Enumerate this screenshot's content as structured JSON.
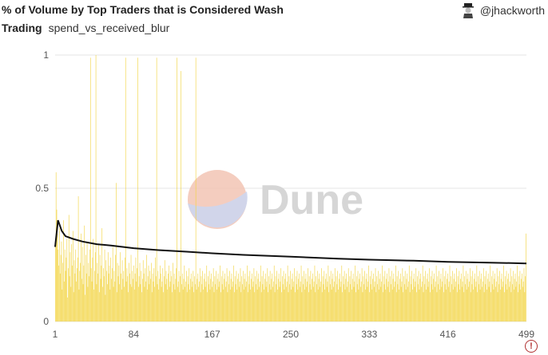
{
  "header": {
    "title_line1": "% of Volume by Top Traders that is Considered Wash",
    "title_line2": "Trading",
    "subtitle": "spend_vs_received_blur",
    "author": "@jhackworth"
  },
  "watermark": {
    "text": "Dune"
  },
  "colors": {
    "bar": "#f2d23c",
    "line": "#111111",
    "grid": "#e4e4e4",
    "watermark_red": "#f2c4b4",
    "watermark_blue": "#cdd6ee",
    "watermark_text": "#d6d6d6"
  },
  "chart_data": {
    "type": "bar",
    "title": "% of Volume by Top Traders that is Considered Wash Trading",
    "subtitle": "spend_vs_received_blur",
    "xlabel": "",
    "ylabel": "",
    "xlim": [
      1,
      499
    ],
    "ylim": [
      0,
      1
    ],
    "x_ticks": [
      "1",
      "84",
      "167",
      "250",
      "333",
      "416",
      "499"
    ],
    "y_ticks": [
      "0",
      "0.5",
      "1"
    ],
    "grid": true,
    "legend": "none",
    "series": [
      {
        "type": "bar",
        "x_range": [
          1,
          499
        ],
        "values": [
          0.29,
          0.56,
          0.42,
          0.33,
          0.27,
          0.21,
          0.35,
          0.18,
          0.25,
          0.3,
          0.12,
          0.22,
          0.38,
          0.15,
          0.27,
          0.19,
          0.24,
          0.31,
          0.09,
          0.2,
          0.4,
          0.17,
          0.26,
          0.13,
          0.29,
          0.21,
          0.34,
          0.11,
          0.23,
          0.18,
          0.27,
          0.15,
          0.2,
          0.24,
          0.47,
          0.12,
          0.19,
          0.22,
          0.33,
          0.16,
          0.28,
          0.14,
          0.21,
          0.36,
          0.1,
          0.25,
          0.18,
          0.3,
          0.13,
          0.22,
          0.17,
          0.27,
          0.99,
          0.2,
          0.15,
          0.24,
          0.31,
          0.12,
          0.19,
          0.26,
          1.0,
          0.14,
          0.22,
          0.18,
          0.29,
          0.11,
          0.25,
          0.16,
          0.21,
          0.35,
          0.13,
          0.2,
          0.17,
          0.27,
          0.1,
          0.23,
          0.19,
          0.14,
          0.26,
          0.18,
          0.21,
          0.12,
          0.24,
          0.16,
          0.2,
          0.28,
          0.13,
          0.19,
          0.15,
          0.25,
          0.52,
          0.11,
          0.22,
          0.17,
          0.21,
          0.14,
          0.26,
          0.18,
          0.12,
          0.23,
          0.16,
          0.19,
          0.13,
          0.24,
          0.99,
          0.15,
          0.2,
          0.17,
          0.11,
          0.22,
          0.18,
          0.14,
          0.25,
          0.13,
          0.19,
          0.16,
          0.21,
          0.12,
          0.18,
          0.24,
          0.15,
          0.2,
          0.99,
          0.13,
          0.17,
          0.22,
          0.14,
          0.19,
          0.11,
          0.16,
          0.23,
          0.18,
          0.13,
          0.2,
          0.15,
          0.25,
          0.12,
          0.17,
          0.21,
          0.14,
          0.19,
          0.16,
          0.22,
          0.11,
          0.18,
          0.15,
          0.2,
          0.13,
          0.24,
          0.17,
          0.99,
          0.14,
          0.19,
          0.12,
          0.16,
          0.21,
          0.18,
          0.13,
          0.15,
          0.2,
          0.11,
          0.17,
          0.23,
          0.14,
          0.19,
          0.16,
          0.12,
          0.18,
          0.21,
          0.13,
          0.15,
          0.19,
          0.17,
          0.11,
          0.22,
          0.14,
          0.18,
          0.12,
          0.16,
          0.2,
          0.99,
          0.13,
          0.15,
          0.19,
          0.11,
          0.17,
          0.94,
          0.14,
          0.18,
          0.12,
          0.16,
          0.21,
          0.13,
          0.15,
          0.19,
          0.11,
          0.17,
          0.14,
          0.2,
          0.12,
          0.16,
          0.18,
          0.13,
          0.15,
          0.19,
          0.11,
          0.17,
          0.14,
          0.99,
          0.12,
          0.16,
          0.18,
          0.13,
          0.15,
          0.2,
          0.11,
          0.17,
          0.14,
          0.19,
          0.12,
          0.16,
          0.18,
          0.13,
          0.15,
          0.21,
          0.11,
          0.17,
          0.14,
          0.19,
          0.12,
          0.16,
          0.18,
          0.13,
          0.15,
          0.2,
          0.11,
          0.17,
          0.14,
          0.19,
          0.12,
          0.16,
          0.18,
          0.13,
          0.15,
          0.21,
          0.11,
          0.17,
          0.14,
          0.19,
          0.12,
          0.16,
          0.18,
          0.13,
          0.15,
          0.2,
          0.11,
          0.17,
          0.14,
          0.19,
          0.12,
          0.16,
          0.18,
          0.13,
          0.15,
          0.21,
          0.11,
          0.17,
          0.14,
          0.19,
          0.12,
          0.16,
          0.18,
          0.13,
          0.15,
          0.2,
          0.11,
          0.17,
          0.14,
          0.19,
          0.12,
          0.16,
          0.18,
          0.13,
          0.15,
          0.21,
          0.11,
          0.17,
          0.14,
          0.19,
          0.12,
          0.16,
          0.18,
          0.13,
          0.15,
          0.2,
          0.11,
          0.17,
          0.14,
          0.19,
          0.12,
          0.16,
          0.18,
          0.13,
          0.15,
          0.21,
          0.11,
          0.17,
          0.14,
          0.19,
          0.12,
          0.16,
          0.18,
          0.13,
          0.15,
          0.2,
          0.11,
          0.17,
          0.14,
          0.19,
          0.12,
          0.16,
          0.18,
          0.13,
          0.15,
          0.21,
          0.11,
          0.17,
          0.14,
          0.19,
          0.12,
          0.16,
          0.18,
          0.13,
          0.15,
          0.2,
          0.11,
          0.17,
          0.14,
          0.19,
          0.12,
          0.16,
          0.18,
          0.13,
          0.15,
          0.21,
          0.11,
          0.17,
          0.14,
          0.19,
          0.12,
          0.16,
          0.18,
          0.13,
          0.15,
          0.2,
          0.11,
          0.17,
          0.14,
          0.19,
          0.12,
          0.16,
          0.18,
          0.13,
          0.15,
          0.21,
          0.11,
          0.17,
          0.14,
          0.19,
          0.12,
          0.16,
          0.18,
          0.13,
          0.15,
          0.2,
          0.11,
          0.17,
          0.14,
          0.19,
          0.12,
          0.16,
          0.18,
          0.13,
          0.15,
          0.21,
          0.11,
          0.17,
          0.14,
          0.19,
          0.12,
          0.16,
          0.18,
          0.13,
          0.15,
          0.2,
          0.11,
          0.17,
          0.14,
          0.19,
          0.12,
          0.16,
          0.18,
          0.13,
          0.15,
          0.21,
          0.11,
          0.17,
          0.14,
          0.19,
          0.12,
          0.16,
          0.18,
          0.13,
          0.15,
          0.2,
          0.11,
          0.17,
          0.14,
          0.19,
          0.12,
          0.16,
          0.18,
          0.13,
          0.15,
          0.21,
          0.11,
          0.17,
          0.14,
          0.19,
          0.12,
          0.16,
          0.18,
          0.13,
          0.15,
          0.2,
          0.11,
          0.17,
          0.14,
          0.19,
          0.12,
          0.16,
          0.18,
          0.13,
          0.15,
          0.21,
          0.11,
          0.17,
          0.14,
          0.19,
          0.12,
          0.16,
          0.18,
          0.13,
          0.15,
          0.2,
          0.11,
          0.17,
          0.14,
          0.19,
          0.12,
          0.16,
          0.18,
          0.13,
          0.15,
          0.21,
          0.11,
          0.17,
          0.14,
          0.19,
          0.12,
          0.16,
          0.18,
          0.13,
          0.15,
          0.2,
          0.11,
          0.17,
          0.14,
          0.19,
          0.12,
          0.16,
          0.18,
          0.13,
          0.15,
          0.21,
          0.11,
          0.17,
          0.14,
          0.19,
          0.12,
          0.16,
          0.18,
          0.13,
          0.15,
          0.2,
          0.11,
          0.17,
          0.14,
          0.19,
          0.12,
          0.16,
          0.18,
          0.13,
          0.15,
          0.21,
          0.11,
          0.17,
          0.14,
          0.19,
          0.12,
          0.16,
          0.18,
          0.13,
          0.15,
          0.2,
          0.11,
          0.17,
          0.14,
          0.19,
          0.12,
          0.16,
          0.18,
          0.13,
          0.15,
          0.21,
          0.11,
          0.17,
          0.14,
          0.19,
          0.12,
          0.16,
          0.18,
          0.13,
          0.15,
          0.2,
          0.11,
          0.17,
          0.14,
          0.19,
          0.12,
          0.16,
          0.18,
          0.13,
          0.15,
          0.21,
          0.11,
          0.17,
          0.14,
          0.19,
          0.12,
          0.16,
          0.18,
          0.13,
          0.15,
          0.2,
          0.11,
          0.17,
          0.14,
          0.19,
          0.12,
          0.16,
          0.18,
          0.13,
          0.15,
          0.21,
          0.11,
          0.17,
          0.14,
          0.19,
          0.12,
          0.16,
          0.18,
          0.13,
          0.15,
          0.2,
          0.11,
          0.17,
          0.14,
          0.19,
          0.12,
          0.16,
          0.18,
          0.13,
          0.15,
          0.21,
          0.11,
          0.17,
          0.14,
          0.19,
          0.12,
          0.16,
          0.18,
          0.13,
          0.15,
          0.2,
          0.11,
          0.17,
          0.14,
          0.19,
          0.12,
          0.16,
          0.18,
          0.13,
          0.15,
          0.21,
          0.11,
          0.17,
          0.14,
          0.19,
          0.12,
          0.16,
          0.18,
          0.13,
          0.15,
          0.2,
          0.11,
          0.17,
          0.14,
          0.19,
          0.12,
          0.16,
          0.18,
          0.13,
          0.15,
          0.21,
          0.11,
          0.17,
          0.14,
          0.19,
          0.12,
          0.16,
          0.18,
          0.13,
          0.15,
          0.2,
          0.11,
          0.17,
          0.14,
          0.19,
          0.12,
          0.16,
          0.18,
          0.13,
          0.15,
          0.21,
          0.11,
          0.17,
          0.14,
          0.19,
          0.12,
          0.16,
          0.18,
          0.13,
          0.15,
          0.2,
          0.11,
          0.17,
          0.14,
          0.19,
          0.12,
          0.16,
          0.18,
          0.13,
          0.15,
          0.21,
          0.11,
          0.17,
          0.14,
          0.19,
          0.12,
          0.16,
          0.18,
          0.13,
          0.15,
          0.2,
          0.11,
          0.17,
          0.14,
          0.19,
          0.12,
          0.16,
          0.18,
          0.13,
          0.15,
          0.21,
          0.11,
          0.17,
          0.14,
          0.19,
          0.12,
          0.16,
          0.18,
          0.13,
          0.15,
          0.2,
          0.11,
          0.17,
          0.33
        ]
      },
      {
        "type": "line",
        "x": [
          1,
          4,
          8,
          12,
          20,
          30,
          45,
          60,
          84,
          110,
          140,
          167,
          200,
          250,
          300,
          333,
          380,
          416,
          460,
          499
        ],
        "values": [
          0.28,
          0.38,
          0.34,
          0.32,
          0.31,
          0.3,
          0.29,
          0.285,
          0.275,
          0.268,
          0.262,
          0.256,
          0.25,
          0.243,
          0.236,
          0.232,
          0.228,
          0.224,
          0.221,
          0.218
        ]
      }
    ]
  }
}
